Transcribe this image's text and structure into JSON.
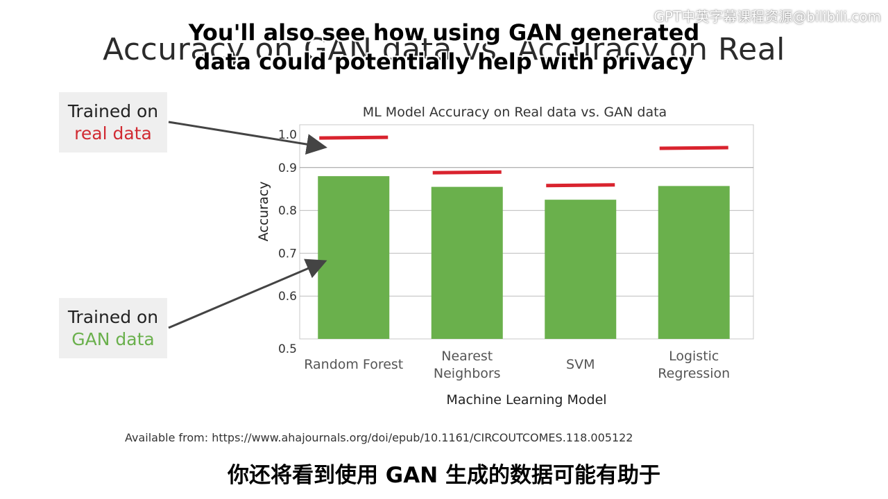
{
  "slide": {
    "title": "Accuracy on GAN data vs. Accuracy on Real",
    "source": "Available from: https://www.ahajournals.org/doi/epub/10.1161/CIRCOUTCOMES.118.005122"
  },
  "captions": {
    "en_line1": "You'll also see how using GAN generated",
    "en_line2": "data could potentially help with privacy",
    "zh": "你还将看到使用 GAN 生成的数据可能有助于"
  },
  "watermark": "GPT中英字幕课程资源@bilibili.com",
  "callouts": {
    "real": {
      "line1": "Trained on",
      "line2": "real data"
    },
    "gan": {
      "line1": "Trained on",
      "line2": "GAN data"
    }
  },
  "chart_data": {
    "type": "bar",
    "title": "ML Model Accuracy on Real data vs. GAN data",
    "xlabel": "Machine Learning Model",
    "ylabel": "Accuracy",
    "ylim": [
      0.5,
      1.0
    ],
    "yticks": [
      "0.5",
      "0.6",
      "0.7",
      "0.8",
      "0.9",
      "1.0"
    ],
    "categories": [
      [
        "Random Forest"
      ],
      [
        "Nearest",
        "Neighbors"
      ],
      [
        "SVM"
      ],
      [
        "Logistic",
        "Regression"
      ]
    ],
    "series": [
      {
        "name": "GAN data",
        "style": "bar",
        "color": "#6ab04c",
        "values": [
          0.88,
          0.855,
          0.825,
          0.857
        ]
      },
      {
        "name": "real data",
        "style": "marker-line",
        "color": "#d9232e",
        "values": [
          0.969,
          0.888,
          0.858,
          0.945
        ]
      }
    ],
    "grid": true,
    "legend": "none"
  },
  "colors": {
    "bar": "#6ab04c",
    "real_line": "#d9232e",
    "grid": "#bbbbbb",
    "arrow": "#444444"
  }
}
